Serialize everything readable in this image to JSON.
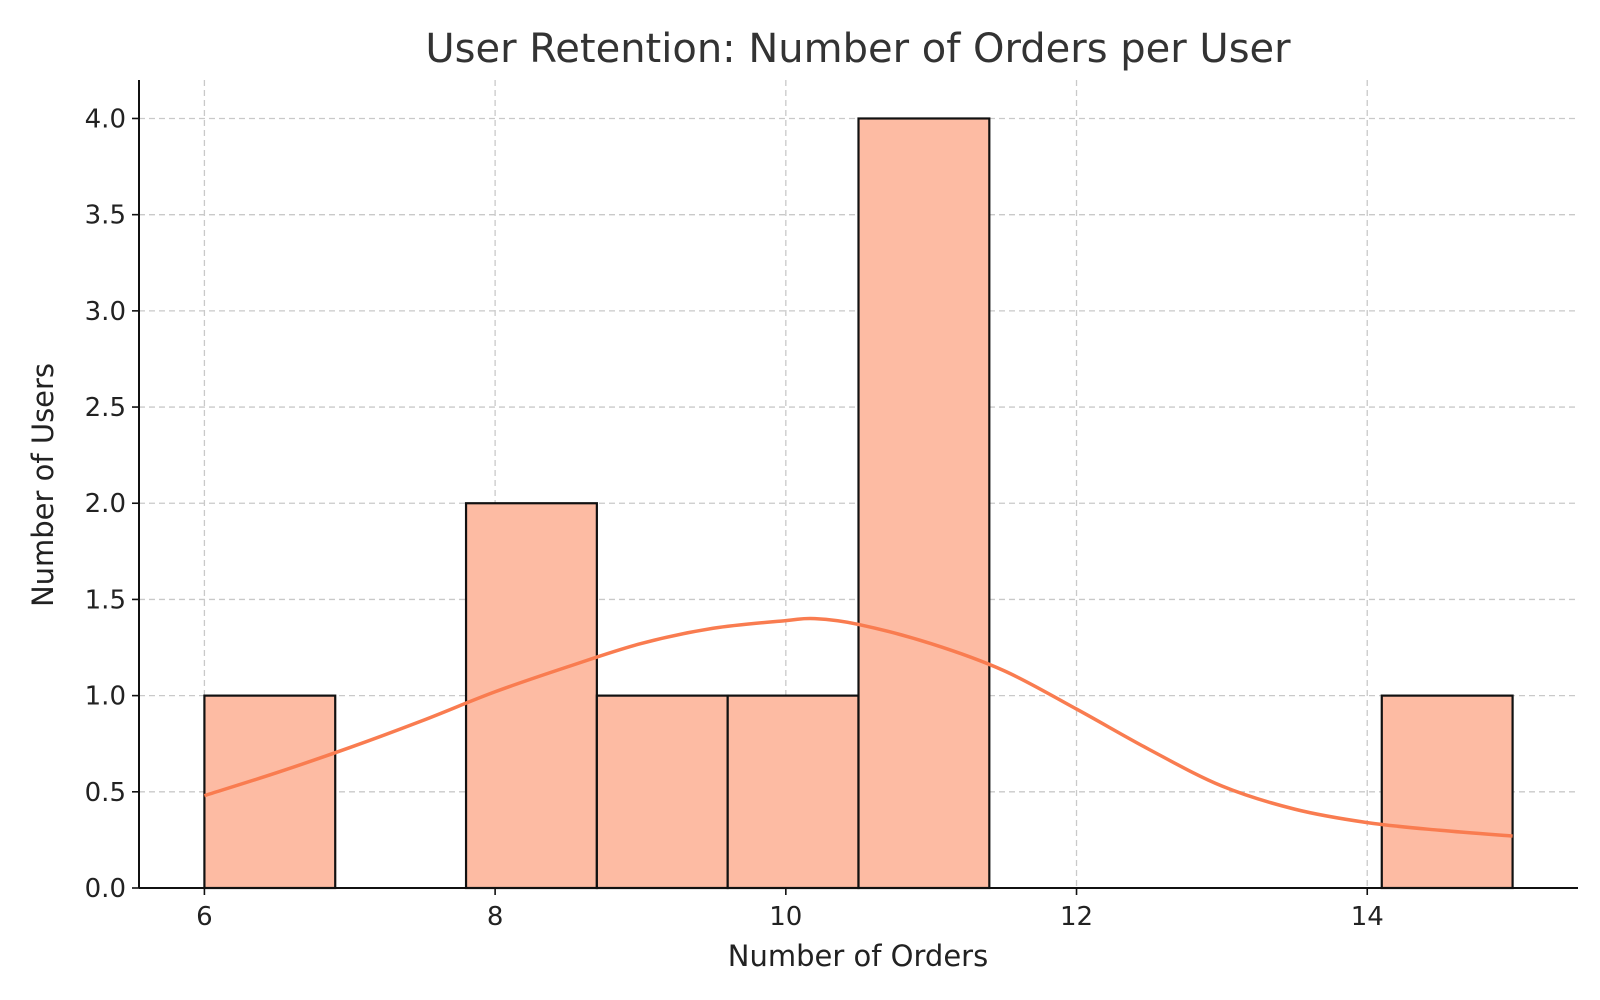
{
  "chart_data": {
    "type": "bar",
    "subtype": "histogram",
    "title": "User Retention: Number of Orders per User",
    "xlabel": "Number of Orders",
    "ylabel": "Number of Users",
    "xlim": [
      5.55,
      15.45
    ],
    "ylim": [
      0,
      4.2
    ],
    "xticks": [
      6,
      8,
      10,
      12,
      14
    ],
    "xtick_labels": [
      "6",
      "8",
      "10",
      "12",
      "14"
    ],
    "yticks": [
      0,
      0.5,
      1.0,
      1.5,
      2.0,
      2.5,
      3.0,
      3.5,
      4.0
    ],
    "ytick_labels": [
      "0.0",
      "0.5",
      "1.0",
      "1.5",
      "2.0",
      "2.5",
      "3.0",
      "3.5",
      "4.0"
    ],
    "grid": true,
    "bins": [
      {
        "x0": 6.0,
        "x1": 6.9,
        "count": 1
      },
      {
        "x0": 6.9,
        "x1": 7.8,
        "count": 0
      },
      {
        "x0": 7.8,
        "x1": 8.7,
        "count": 2
      },
      {
        "x0": 8.7,
        "x1": 9.6,
        "count": 1
      },
      {
        "x0": 9.6,
        "x1": 10.5,
        "count": 1
      },
      {
        "x0": 10.5,
        "x1": 11.4,
        "count": 4
      },
      {
        "x0": 11.4,
        "x1": 12.3,
        "count": 0
      },
      {
        "x0": 12.3,
        "x1": 13.2,
        "count": 0
      },
      {
        "x0": 13.2,
        "x1": 14.1,
        "count": 0
      },
      {
        "x0": 14.1,
        "x1": 15.0,
        "count": 1
      }
    ],
    "kde": {
      "x": [
        6.0,
        6.5,
        7.0,
        7.5,
        8.0,
        8.5,
        9.0,
        9.5,
        10.0,
        10.2,
        10.5,
        11.0,
        11.5,
        12.0,
        12.5,
        13.0,
        13.5,
        14.0,
        14.5,
        15.0
      ],
      "y": [
        0.48,
        0.6,
        0.73,
        0.87,
        1.02,
        1.15,
        1.27,
        1.35,
        1.39,
        1.4,
        1.37,
        1.27,
        1.13,
        0.93,
        0.72,
        0.53,
        0.41,
        0.34,
        0.3,
        0.27
      ]
    },
    "colors": {
      "bar_fill": "#fdbba3",
      "bar_edge": "#111111",
      "kde_line": "#f97c50",
      "grid": "#c9c9c9",
      "text": "#222222"
    }
  }
}
